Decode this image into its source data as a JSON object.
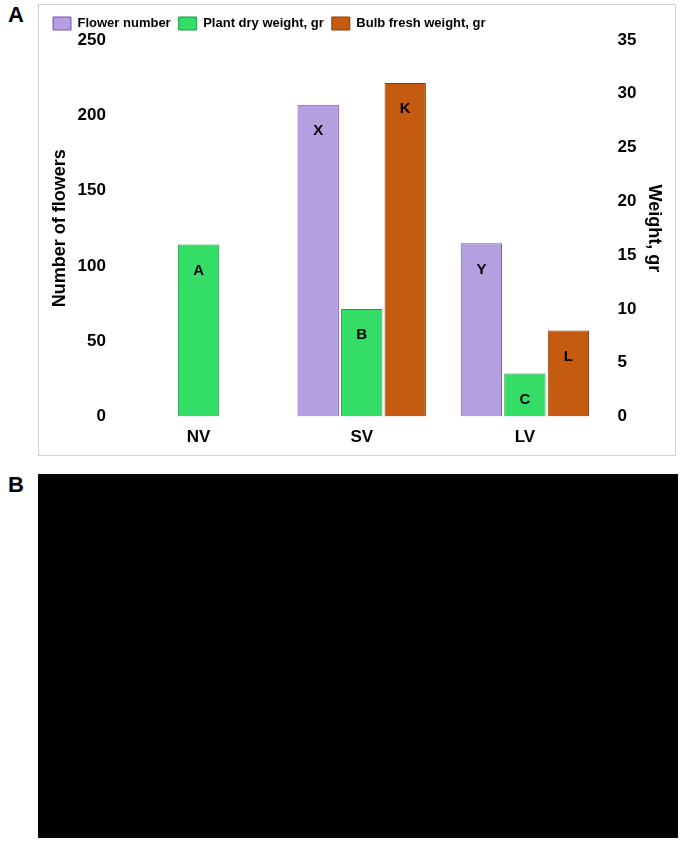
{
  "panel_labels": [
    "A",
    "B"
  ],
  "chart_data": {
    "type": "bar",
    "categories": [
      "NV",
      "SV",
      "LV"
    ],
    "y_label": "Number of flowers",
    "y2_label": "Weight, gr",
    "ylim": [
      0,
      250
    ],
    "yticks": [
      0,
      50,
      100,
      150,
      200,
      250
    ],
    "y2lim": [
      0,
      35
    ],
    "y2ticks": [
      0,
      5,
      10,
      15,
      20,
      25,
      30,
      35
    ],
    "grid": false,
    "legend": "upper left",
    "series": [
      {
        "name": "Flower number",
        "color": "#b4a0e0",
        "values": [
          null,
          207,
          115
        ],
        "letters": [
          null,
          "X",
          "Y"
        ]
      },
      {
        "name": "Plant dry weight, gr",
        "color": "#33dd66",
        "axis": "y2",
        "values": [
          16,
          10,
          4
        ],
        "letters": [
          "A",
          "B",
          "C"
        ]
      },
      {
        "name": "Bulb fresh weight, gr",
        "color": "#c55a11",
        "axis": "y2",
        "values": [
          null,
          31,
          8
        ],
        "letters": [
          null,
          "K",
          "L"
        ]
      }
    ]
  }
}
